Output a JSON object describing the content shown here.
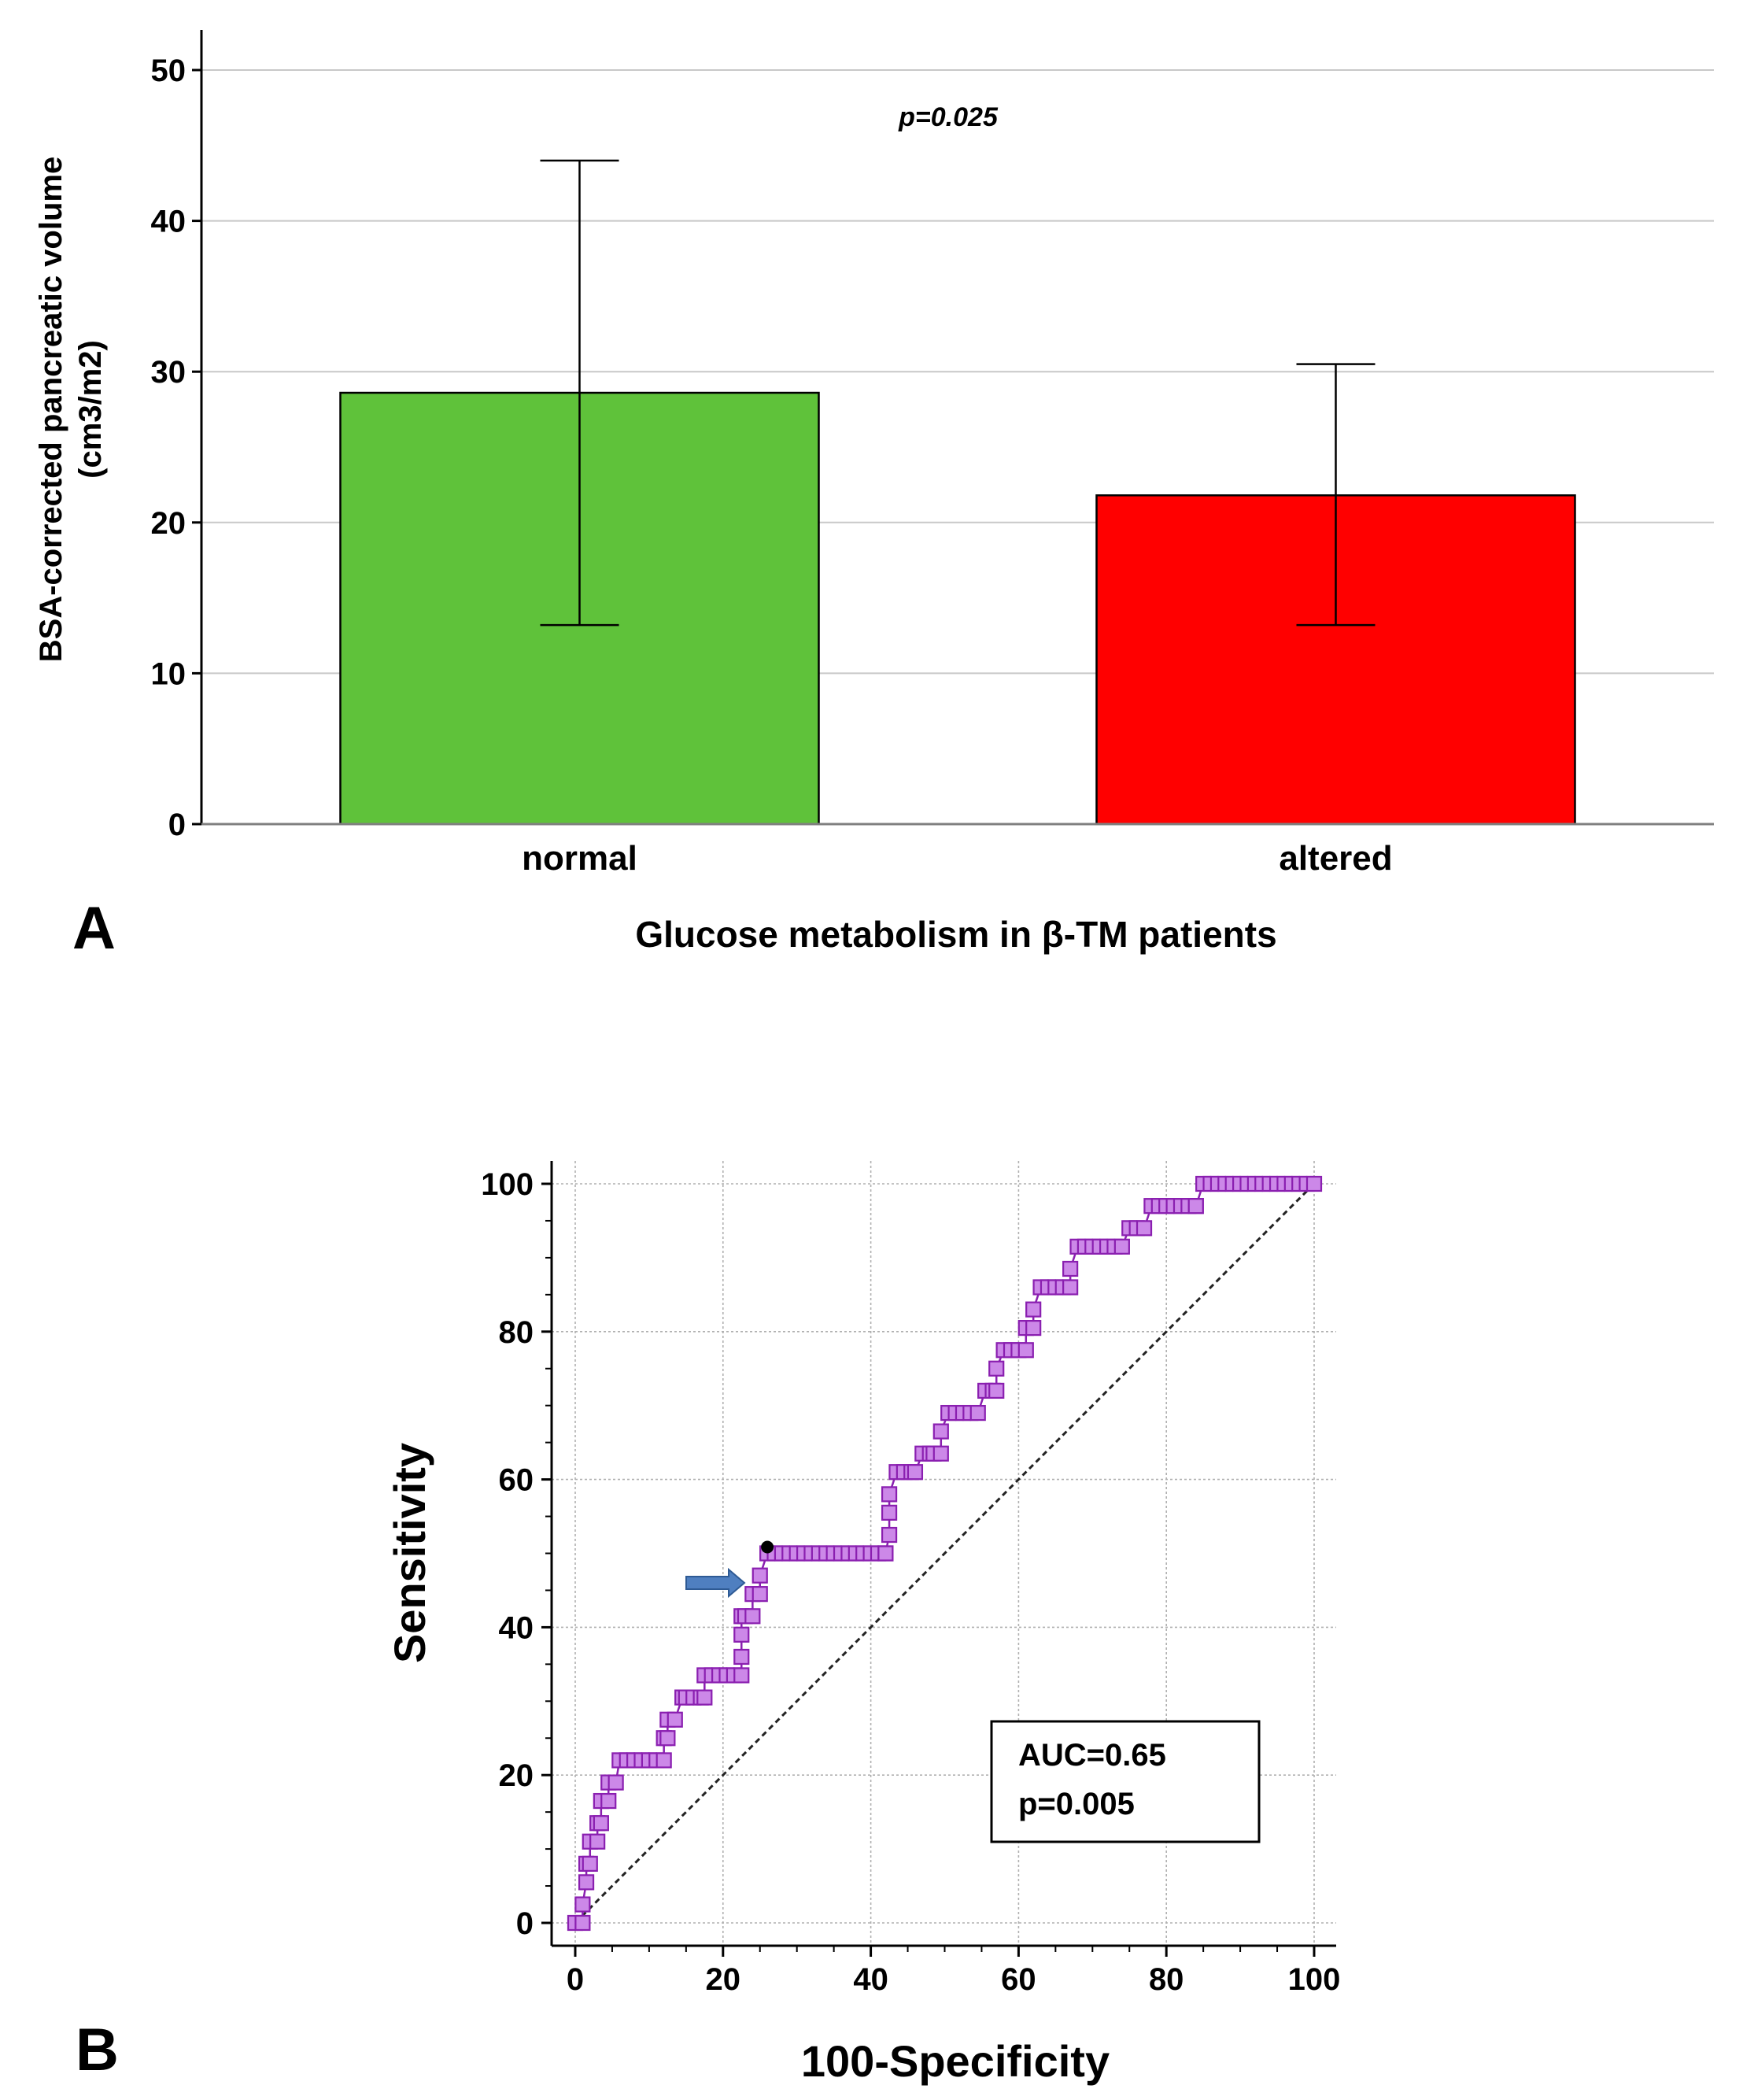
{
  "panel_a": {
    "panel_label": "A",
    "chart_data": {
      "type": "bar",
      "categories": [
        "normal",
        "altered"
      ],
      "values": [
        28.6,
        21.8
      ],
      "error_low": [
        13.2,
        13.2
      ],
      "error_high": [
        44.0,
        30.5
      ],
      "colors": [
        "#5fc23a",
        "#ff0000"
      ],
      "title": "",
      "xlabel": "Glucose metabolism in β-TM patients",
      "ylabel_line1": "BSA-corrected pancreatic volume",
      "ylabel_line2": "(cm3/m2)",
      "ylim": [
        0,
        50
      ],
      "yticks": [
        0,
        10,
        20,
        30,
        40,
        50
      ],
      "annotation": "p=0.025"
    }
  },
  "panel_b": {
    "panel_label": "B",
    "chart_data": {
      "type": "line",
      "title": "",
      "xlabel": "100-Specificity",
      "ylabel": "Sensitivity",
      "xlim": [
        0,
        100
      ],
      "ylim": [
        0,
        100
      ],
      "xticks": [
        0,
        20,
        40,
        60,
        80,
        100
      ],
      "yticks": [
        0,
        20,
        40,
        60,
        80,
        100
      ],
      "marker_color": "#cc88e8",
      "marker_edge": "#8a1fb0",
      "series": [
        {
          "name": "ROC curve",
          "x": [
            0,
            1,
            1,
            1.5,
            1.5,
            2,
            2,
            3,
            3,
            3.5,
            3.5,
            4.5,
            4.5,
            5.5,
            6,
            7,
            8,
            9,
            10,
            11,
            12,
            12,
            12.5,
            12.5,
            13.5,
            14.5,
            15,
            16,
            17,
            17.5,
            17.5,
            18.5,
            19.5,
            20.5,
            21.5,
            22.5,
            22.5,
            22.5,
            22.5,
            23,
            24,
            24,
            25,
            25,
            26,
            27,
            28,
            29,
            30,
            31,
            32,
            33,
            34,
            35,
            36,
            37,
            38,
            39,
            40,
            41,
            42,
            42,
            42.5,
            42.5,
            42.5,
            43.5,
            44.5,
            45.5,
            46,
            47,
            48,
            48.5,
            49.5,
            49.5,
            50.5,
            51.5,
            52.5,
            53.5,
            54.5,
            55.5,
            56.5,
            57,
            57,
            58,
            59,
            60,
            61,
            61,
            62,
            62,
            63,
            64,
            65,
            66,
            67,
            67,
            68,
            69,
            70,
            71,
            72,
            73,
            74,
            75,
            76,
            77,
            78,
            79,
            80,
            81,
            82,
            83,
            84,
            84,
            85,
            86,
            87,
            88,
            89,
            90,
            91,
            92,
            93,
            94,
            95,
            96,
            97,
            98,
            99,
            100
          ],
          "y": [
            0,
            0,
            2.5,
            5.5,
            8,
            8,
            11,
            11,
            13.5,
            13.5,
            16.5,
            16.5,
            19,
            19,
            22,
            22,
            22,
            22,
            22,
            22,
            22,
            25,
            25,
            27.5,
            27.5,
            30.5,
            30.5,
            30.5,
            30.5,
            30.5,
            33.5,
            33.5,
            33.5,
            33.5,
            33.5,
            33.5,
            36,
            39,
            41.5,
            41.5,
            41.5,
            44.5,
            44.5,
            47,
            50,
            50,
            50,
            50,
            50,
            50,
            50,
            50,
            50,
            50,
            50,
            50,
            50,
            50,
            50,
            50,
            50,
            50,
            52.5,
            55.5,
            58,
            61,
            61,
            61,
            61,
            63.5,
            63.5,
            63.5,
            63.5,
            66.5,
            69,
            69,
            69,
            69,
            69,
            72,
            72,
            72,
            75,
            77.5,
            77.5,
            77.5,
            77.5,
            80.5,
            80.5,
            83,
            86,
            86,
            86,
            86,
            86,
            88.5,
            91.5,
            91.5,
            91.5,
            91.5,
            91.5,
            91.5,
            91.5,
            94,
            94,
            94,
            97,
            97,
            97,
            97,
            97,
            97,
            97,
            97,
            100,
            100,
            100,
            100,
            100,
            100,
            100,
            100,
            100,
            100,
            100,
            100,
            100,
            100,
            100,
            100
          ]
        },
        {
          "name": "reference",
          "x": [
            0,
            100
          ],
          "y": [
            0,
            100
          ]
        }
      ],
      "cutoff_point": {
        "x": 26,
        "y": 50
      },
      "annotation_lines": [
        "AUC=0.65",
        "p=0.005"
      ]
    }
  }
}
